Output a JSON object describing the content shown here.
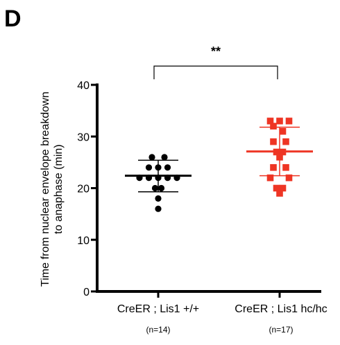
{
  "panel_label": "D",
  "chart_data": {
    "type": "scatter",
    "title": "",
    "ylabel_lines": [
      "Time from nuclear envelope breakdown",
      "to anaphase (min)"
    ],
    "xlabel": "",
    "ylim": [
      0,
      40
    ],
    "yticks": [
      0,
      10,
      20,
      30,
      40
    ],
    "grid": false,
    "categories": [
      "CreER ; Lis1 +/+",
      "CreER ; Lis1 hc/hc"
    ],
    "n_labels": [
      "(n=14)",
      "(n=17)"
    ],
    "significance": "**",
    "series": [
      {
        "category": "CreER ; Lis1 +/+",
        "color": "#000000",
        "marker": "circle",
        "mean": 22.4,
        "sd_upper": 25.4,
        "sd_lower": 19.3,
        "points": [
          {
            "x_offset": -1,
            "y": 26
          },
          {
            "x_offset": 1,
            "y": 26
          },
          {
            "x_offset": -1.5,
            "y": 24
          },
          {
            "x_offset": 0,
            "y": 24
          },
          {
            "x_offset": 1.5,
            "y": 24
          },
          {
            "x_offset": -3,
            "y": 22
          },
          {
            "x_offset": -1.5,
            "y": 22
          },
          {
            "x_offset": 0,
            "y": 22
          },
          {
            "x_offset": 1.5,
            "y": 22
          },
          {
            "x_offset": 3,
            "y": 22
          },
          {
            "x_offset": -0.5,
            "y": 20
          },
          {
            "x_offset": 0.5,
            "y": 20
          },
          {
            "x_offset": 0,
            "y": 18
          },
          {
            "x_offset": 0,
            "y": 16
          }
        ]
      },
      {
        "category": "CreER ; Lis1 hc/hc",
        "color": "#ee3524",
        "marker": "square",
        "mean": 27.1,
        "sd_upper": 31.8,
        "sd_lower": 22.4,
        "points": [
          {
            "x_offset": -1.5,
            "y": 33
          },
          {
            "x_offset": 0,
            "y": 33
          },
          {
            "x_offset": 1.5,
            "y": 33
          },
          {
            "x_offset": -1,
            "y": 32
          },
          {
            "x_offset": 0.5,
            "y": 31
          },
          {
            "x_offset": -1,
            "y": 29
          },
          {
            "x_offset": 1,
            "y": 29
          },
          {
            "x_offset": -0.5,
            "y": 27
          },
          {
            "x_offset": 0.5,
            "y": 27
          },
          {
            "x_offset": 0,
            "y": 26
          },
          {
            "x_offset": -1,
            "y": 24
          },
          {
            "x_offset": 1,
            "y": 24
          },
          {
            "x_offset": -1.5,
            "y": 22
          },
          {
            "x_offset": 1.5,
            "y": 22
          },
          {
            "x_offset": -0.5,
            "y": 20
          },
          {
            "x_offset": 0.5,
            "y": 20
          },
          {
            "x_offset": 0,
            "y": 19
          }
        ]
      }
    ]
  }
}
